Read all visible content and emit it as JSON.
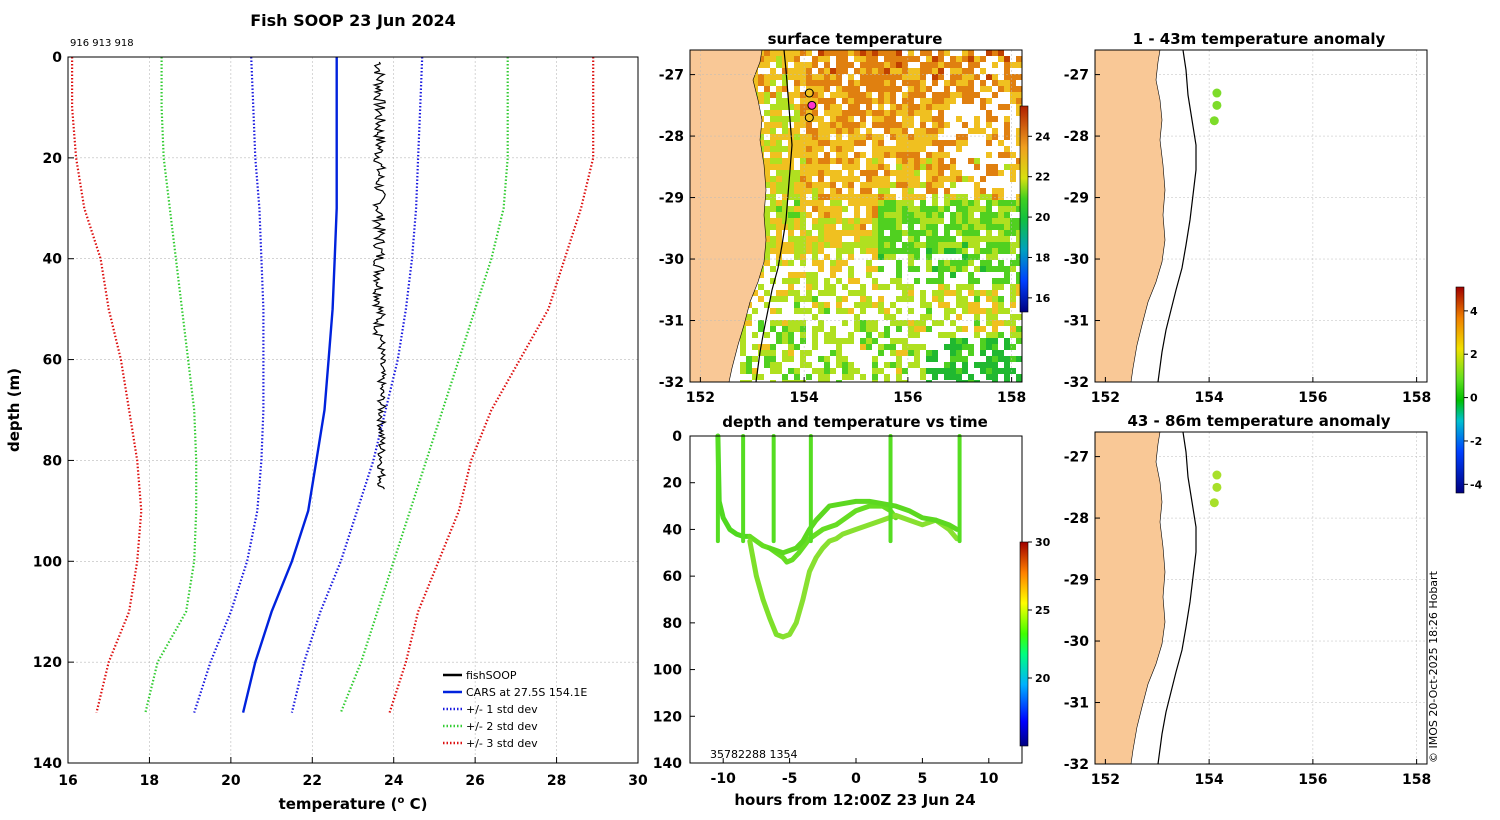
{
  "colors": {
    "land": "#f9c896",
    "cars": "#0022dd",
    "std1": "#1a1adf",
    "std2": "#33cc33",
    "std3": "#dd1111",
    "fish": "#000000",
    "track": "#55dd22",
    "dot": "#9be22a",
    "grid": "#bbbbbb"
  },
  "chart_data": [
    {
      "type": "line",
      "id": "profile",
      "title": "Fish SOOP 23 Jun 2024",
      "subtitle": "916 913 918",
      "xlabel": "temperature (",
      "xlabel_sup": "o",
      "xlabel_end": " C)",
      "ylabel": "depth (m)",
      "xlim": [
        16,
        30
      ],
      "ylim": [
        0,
        140
      ],
      "xticks": [
        "16",
        "18",
        "20",
        "22",
        "24",
        "26",
        "28",
        "30"
      ],
      "yticks": [
        "0",
        "20",
        "40",
        "60",
        "80",
        "100",
        "120",
        "140"
      ],
      "legend": [
        "fishSOOP",
        "CARS at 27.5S 154.1E",
        "+/- 1 std dev",
        "+/- 2 std dev",
        "+/- 3 std dev"
      ],
      "legend_position": "bottom-right",
      "depth": [
        0,
        10,
        20,
        30,
        40,
        50,
        60,
        70,
        80,
        90,
        100,
        110,
        120,
        130
      ],
      "series": [
        {
          "name": "CARS",
          "style": "solid",
          "temp": [
            22.6,
            22.6,
            22.6,
            22.6,
            22.55,
            22.5,
            22.4,
            22.3,
            22.1,
            21.9,
            21.5,
            21.0,
            20.6,
            20.3
          ]
        },
        {
          "name": "-1 std",
          "style": "dotted",
          "temp": [
            20.5,
            20.55,
            20.6,
            20.7,
            20.75,
            20.8,
            20.8,
            20.8,
            20.75,
            20.65,
            20.4,
            20.0,
            19.5,
            19.1
          ]
        },
        {
          "name": "+1 std",
          "style": "dotted",
          "temp": [
            24.7,
            24.65,
            24.6,
            24.55,
            24.45,
            24.3,
            24.1,
            23.8,
            23.5,
            23.1,
            22.7,
            22.2,
            21.8,
            21.5
          ]
        },
        {
          "name": "-2 std",
          "style": "dotted",
          "temp": [
            18.3,
            18.3,
            18.35,
            18.5,
            18.65,
            18.8,
            18.95,
            19.1,
            19.15,
            19.15,
            19.1,
            18.9,
            18.2,
            17.9
          ]
        },
        {
          "name": "+2 std",
          "style": "dotted",
          "temp": [
            26.8,
            26.8,
            26.8,
            26.7,
            26.4,
            26.0,
            25.6,
            25.2,
            24.8,
            24.4,
            24.0,
            23.6,
            23.2,
            22.7
          ]
        },
        {
          "name": "-3 std",
          "style": "dotted",
          "temp": [
            16.1,
            16.1,
            16.2,
            16.4,
            16.8,
            17.0,
            17.3,
            17.5,
            17.7,
            17.8,
            17.7,
            17.5,
            17.0,
            16.7
          ]
        },
        {
          "name": "+3 std",
          "style": "dotted",
          "temp": [
            28.9,
            28.9,
            28.9,
            28.6,
            28.2,
            27.8,
            27.1,
            26.4,
            25.9,
            25.6,
            25.1,
            24.6,
            24.3,
            23.9
          ]
        }
      ],
      "fishsoop": {
        "tmin": 23.5,
        "tmax": 23.8,
        "dmin": 1,
        "dmax": 86
      }
    },
    {
      "type": "heatmap",
      "id": "sst",
      "title": "surface temperature",
      "xticks": [
        "152",
        "154",
        "156",
        "158"
      ],
      "yticks": [
        "-27",
        "-28",
        "-29",
        "-30",
        "-31",
        "-32"
      ],
      "xlim": [
        151.8,
        158.2
      ],
      "ylim": [
        -32,
        -26.6
      ],
      "colorbar_ticks": [
        "24",
        "22",
        "20",
        "18",
        "16"
      ],
      "colorbar_range": [
        15.3,
        25.5
      ],
      "markers": [
        {
          "lon": 154.1,
          "lat": -27.3
        },
        {
          "lon": 154.15,
          "lat": -27.5
        },
        {
          "lon": 154.1,
          "lat": -27.7
        }
      ]
    },
    {
      "type": "scatter",
      "id": "anom1",
      "title": "1 - 43m temperature anomaly",
      "xticks": [
        "152",
        "154",
        "156",
        "158"
      ],
      "yticks": [
        "-27",
        "-28",
        "-29",
        "-30",
        "-31",
        "-32"
      ],
      "points": [
        {
          "lon": 154.15,
          "lat": -27.3,
          "anomaly": 1.4
        },
        {
          "lon": 154.15,
          "lat": -27.5,
          "anomaly": 1.4
        },
        {
          "lon": 154.1,
          "lat": -27.75,
          "anomaly": 1.4
        }
      ]
    },
    {
      "type": "scatter",
      "id": "anom2",
      "title": "43 - 86m temperature anomaly",
      "xticks": [
        "152",
        "154",
        "156",
        "158"
      ],
      "yticks": [
        "-27",
        "-28",
        "-29",
        "-30",
        "-31",
        "-32"
      ],
      "points": [
        {
          "lon": 154.15,
          "lat": -27.3,
          "anomaly": 1.6
        },
        {
          "lon": 154.15,
          "lat": -27.5,
          "anomaly": 1.6
        },
        {
          "lon": 154.1,
          "lat": -27.75,
          "anomaly": 1.6
        }
      ],
      "colorbar_ticks": [
        "4",
        "2",
        "0",
        "-2",
        "-4"
      ],
      "colorbar_range": [
        -4.4,
        5.1
      ]
    },
    {
      "type": "line",
      "id": "timeseries",
      "title": "depth and temperature vs time",
      "xlabel": "hours from 12:00Z 23 Jun 24",
      "xticks": [
        "-10",
        "-5",
        "0",
        "5",
        "10"
      ],
      "yticks": [
        "0",
        "20",
        "40",
        "60",
        "80",
        "100",
        "120",
        "140"
      ],
      "xlim": [
        -12.5,
        12.5
      ],
      "ylim": [
        0,
        140
      ],
      "annotation": "35782288 1354",
      "colorbar_ticks": [
        "30",
        "25",
        "20"
      ],
      "colorbar_range": [
        15,
        30
      ],
      "tracks": [
        {
          "t": [
            -10.4,
            -10.3,
            -10.0,
            -9.5,
            -9.0,
            -8.5,
            -8.0
          ],
          "d": [
            0,
            28,
            35,
            40,
            42,
            43,
            43
          ]
        },
        {
          "t": [
            -8.0,
            -7.5,
            -7.0,
            -6.5,
            -6.0,
            -5.5,
            -5.2,
            -4.8,
            -4.3,
            -3.5,
            -2.5,
            -1.5,
            -1.0,
            0.0,
            1.0,
            2.0,
            2.6,
            3.0
          ],
          "d": [
            43,
            45,
            47,
            48,
            50,
            52,
            54,
            53,
            50,
            44,
            40,
            38,
            36,
            32,
            30,
            30,
            32,
            35
          ]
        },
        {
          "t": [
            -8.0,
            -7.5,
            -7.0,
            -6.5,
            -6.0,
            -5.5
          ],
          "d": [
            45,
            60,
            70,
            78,
            85,
            86
          ]
        },
        {
          "t": [
            -5.5,
            -5.0,
            -4.5,
            -4.0,
            -3.5,
            -3.0,
            -2.5,
            -2.0,
            -1.5,
            -1.0,
            0.0,
            1.0,
            2.0,
            3.0,
            4.0,
            5.0,
            6.0,
            7.0,
            7.6
          ],
          "d": [
            86,
            85,
            80,
            70,
            58,
            52,
            48,
            45,
            44,
            42,
            40,
            38,
            36,
            34,
            36,
            38,
            36,
            40,
            44
          ]
        },
        {
          "t": [
            -6.5,
            -5.5,
            -4.5,
            -4.0,
            -3.5,
            -3.0,
            -2.0,
            -1.0,
            0.0,
            1.0,
            2.0,
            3.0,
            4.0,
            5.0,
            6.0,
            7.0,
            7.6
          ],
          "d": [
            48,
            50,
            48,
            45,
            40,
            36,
            30,
            29,
            28,
            28,
            29,
            30,
            32,
            35,
            36,
            38,
            40
          ]
        }
      ],
      "spikes": [
        -10.4,
        -8.5,
        -6.2,
        -3.4,
        2.6,
        7.8
      ]
    }
  ],
  "copyright": "© IMOS 20-Oct-2025 18:26 Hobart"
}
